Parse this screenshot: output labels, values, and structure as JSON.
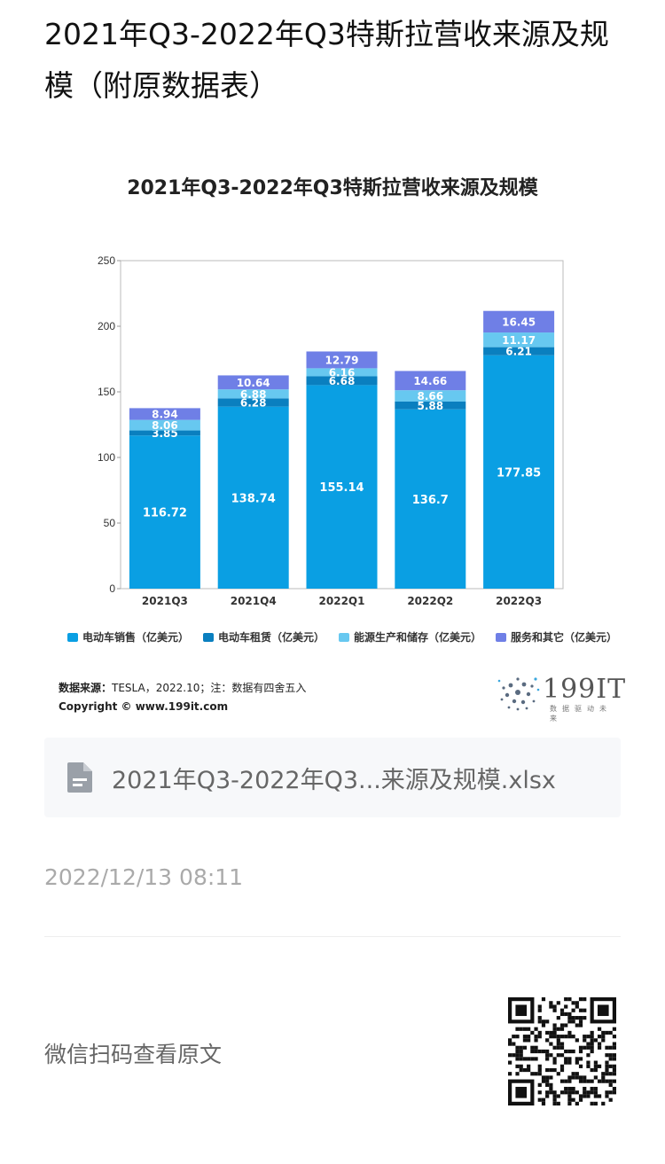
{
  "page": {
    "title": "2021年Q3-2022年Q3特斯拉营收来源及规模（附原数据表）"
  },
  "chart_data": {
    "type": "bar",
    "stacked": true,
    "title": "2021年Q3-2022年Q3特斯拉营收来源及规模",
    "categories": [
      "2021Q3",
      "2021Q4",
      "2022Q1",
      "2022Q2",
      "2022Q3"
    ],
    "ylim": [
      0,
      250
    ],
    "yticks": [
      0,
      50,
      100,
      150,
      200,
      250
    ],
    "grid": false,
    "legend_position": "bottom",
    "series": [
      {
        "name": "电动车销售（亿美元）",
        "color": "#0a9fe3",
        "values": [
          116.72,
          138.74,
          155.14,
          136.7,
          177.85
        ]
      },
      {
        "name": "电动车租赁（亿美元）",
        "color": "#0a7fbf",
        "values": [
          3.85,
          6.28,
          6.68,
          5.88,
          6.21
        ]
      },
      {
        "name": "能源生产和储存（亿美元）",
        "color": "#67c8f0",
        "values": [
          8.06,
          6.88,
          6.16,
          8.66,
          11.17
        ]
      },
      {
        "name": "服务和其它（亿美元）",
        "color": "#6f7fe6",
        "values": [
          8.94,
          10.64,
          12.79,
          14.66,
          16.45
        ]
      }
    ]
  },
  "source": {
    "label": "数据来源：",
    "text": "TESLA，2022.10；注：数据有四舍五入",
    "copyright": "Copyright © www.199it.com"
  },
  "logo": {
    "text": "199IT",
    "sub": "数据驱动未来"
  },
  "file": {
    "name": "2021年Q3-2022年Q3...来源及规模.xlsx"
  },
  "meta": {
    "timestamp": "2022/12/13 08:11",
    "qr_label": "微信扫码查看原文"
  }
}
